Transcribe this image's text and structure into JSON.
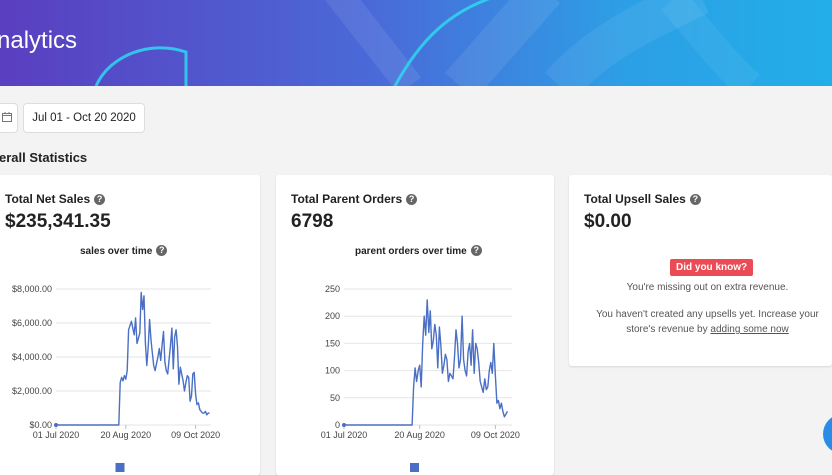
{
  "header": {
    "title": "nalytics"
  },
  "toolbar": {
    "date_range": "Jul 01 - Oct 20 2020"
  },
  "section": {
    "title": "erall Statistics"
  },
  "cards": {
    "sales": {
      "title": "Total Net Sales",
      "value": "$235,341.35",
      "chart_title": "sales over time"
    },
    "orders": {
      "title": "Total Parent Orders",
      "value": "6798",
      "chart_title": "parent orders over time"
    },
    "upsell": {
      "title": "Total Upsell Sales",
      "value": "$0.00",
      "badge": "Did you know?",
      "missing_text": "You're missing out on extra revenue.",
      "body_text_1": "You haven't created any upsells yet. Increase your",
      "body_text_2": "store's revenue by ",
      "link_text": "adding some now"
    }
  },
  "icons": {
    "calendar": "calendar-icon",
    "help": "question-circle-icon"
  },
  "colors": {
    "line": "#4a6fc4",
    "badge": "#ea4b55",
    "fab": "#2b8ce8"
  },
  "chart_data": [
    {
      "type": "line",
      "title": "sales over time",
      "y_tick_labels": [
        "$0.00",
        "$2,000.00",
        "$4,000.00",
        "$6,000.00",
        "$8,000.00"
      ],
      "y_ticks": [
        0,
        2000,
        4000,
        6000,
        8000
      ],
      "ylim": [
        0,
        8000
      ],
      "x_tick_labels": [
        "01 Jul 2020",
        "20 Aug 2020",
        "09 Oct 2020"
      ],
      "x_ticks": [
        0,
        50,
        100
      ],
      "xlim": [
        0,
        111
      ],
      "grid": true,
      "legend": "bottom",
      "series": [
        {
          "x": [
            0,
            45,
            46,
            47,
            48,
            49,
            50,
            51,
            52,
            54,
            56,
            57,
            58,
            60,
            61,
            62,
            63,
            64,
            65,
            66,
            67,
            68,
            69,
            70,
            71,
            72,
            73,
            74,
            75,
            76,
            77,
            78,
            79,
            80,
            82,
            83,
            84,
            85,
            86,
            87,
            88,
            89,
            90,
            91,
            92,
            93,
            94,
            95,
            96,
            97,
            98,
            99,
            100,
            101,
            102,
            103,
            104,
            105,
            106,
            107,
            108,
            109,
            110
          ],
          "y": [
            0,
            0,
            2500,
            2800,
            2600,
            2900,
            2700,
            3200,
            5600,
            6100,
            5300,
            6300,
            4800,
            5400,
            7800,
            6800,
            7600,
            4800,
            3500,
            4600,
            6200,
            5000,
            4200,
            3500,
            3200,
            3600,
            4000,
            4500,
            3800,
            4700,
            5500,
            3700,
            3200,
            3000,
            4700,
            5700,
            3300,
            5200,
            5600,
            4600,
            2400,
            3400,
            3000,
            2600,
            2000,
            2500,
            2900,
            2800,
            1400,
            1700,
            3000,
            3100,
            1800,
            1200,
            1300,
            900,
            800,
            700,
            700,
            800,
            600,
            700,
            700
          ]
        }
      ]
    },
    {
      "type": "line",
      "title": "parent orders over time",
      "y_tick_labels": [
        "0",
        "50",
        "100",
        "150",
        "200",
        "250"
      ],
      "y_ticks": [
        0,
        50,
        100,
        150,
        200,
        250
      ],
      "ylim": [
        0,
        250
      ],
      "x_tick_labels": [
        "01 Jul 2020",
        "20 Aug 2020",
        "09 Oct 2020"
      ],
      "x_ticks": [
        0,
        50,
        100
      ],
      "xlim": [
        0,
        111
      ],
      "grid": true,
      "legend": "bottom",
      "series": [
        {
          "x": [
            0,
            45,
            46,
            47,
            48,
            49,
            50,
            51,
            52,
            53,
            54,
            55,
            56,
            57,
            58,
            59,
            60,
            61,
            62,
            63,
            64,
            65,
            66,
            67,
            68,
            69,
            70,
            71,
            72,
            73,
            74,
            75,
            76,
            77,
            78,
            79,
            80,
            81,
            82,
            83,
            84,
            85,
            86,
            87,
            88,
            89,
            90,
            91,
            92,
            93,
            94,
            95,
            96,
            97,
            98,
            99,
            100,
            101,
            102,
            103,
            104,
            105,
            106,
            107,
            108
          ],
          "y": [
            0,
            0,
            70,
            105,
            80,
            100,
            110,
            70,
            150,
            200,
            165,
            230,
            170,
            210,
            140,
            155,
            185,
            165,
            105,
            180,
            145,
            95,
            110,
            130,
            120,
            80,
            95,
            90,
            85,
            125,
            175,
            150,
            105,
            120,
            200,
            120,
            100,
            90,
            135,
            150,
            110,
            175,
            95,
            150,
            140,
            115,
            80,
            70,
            60,
            85,
            65,
            70,
            100,
            115,
            95,
            150,
            90,
            40,
            45,
            30,
            40,
            25,
            15,
            20,
            25
          ]
        }
      ]
    }
  ]
}
